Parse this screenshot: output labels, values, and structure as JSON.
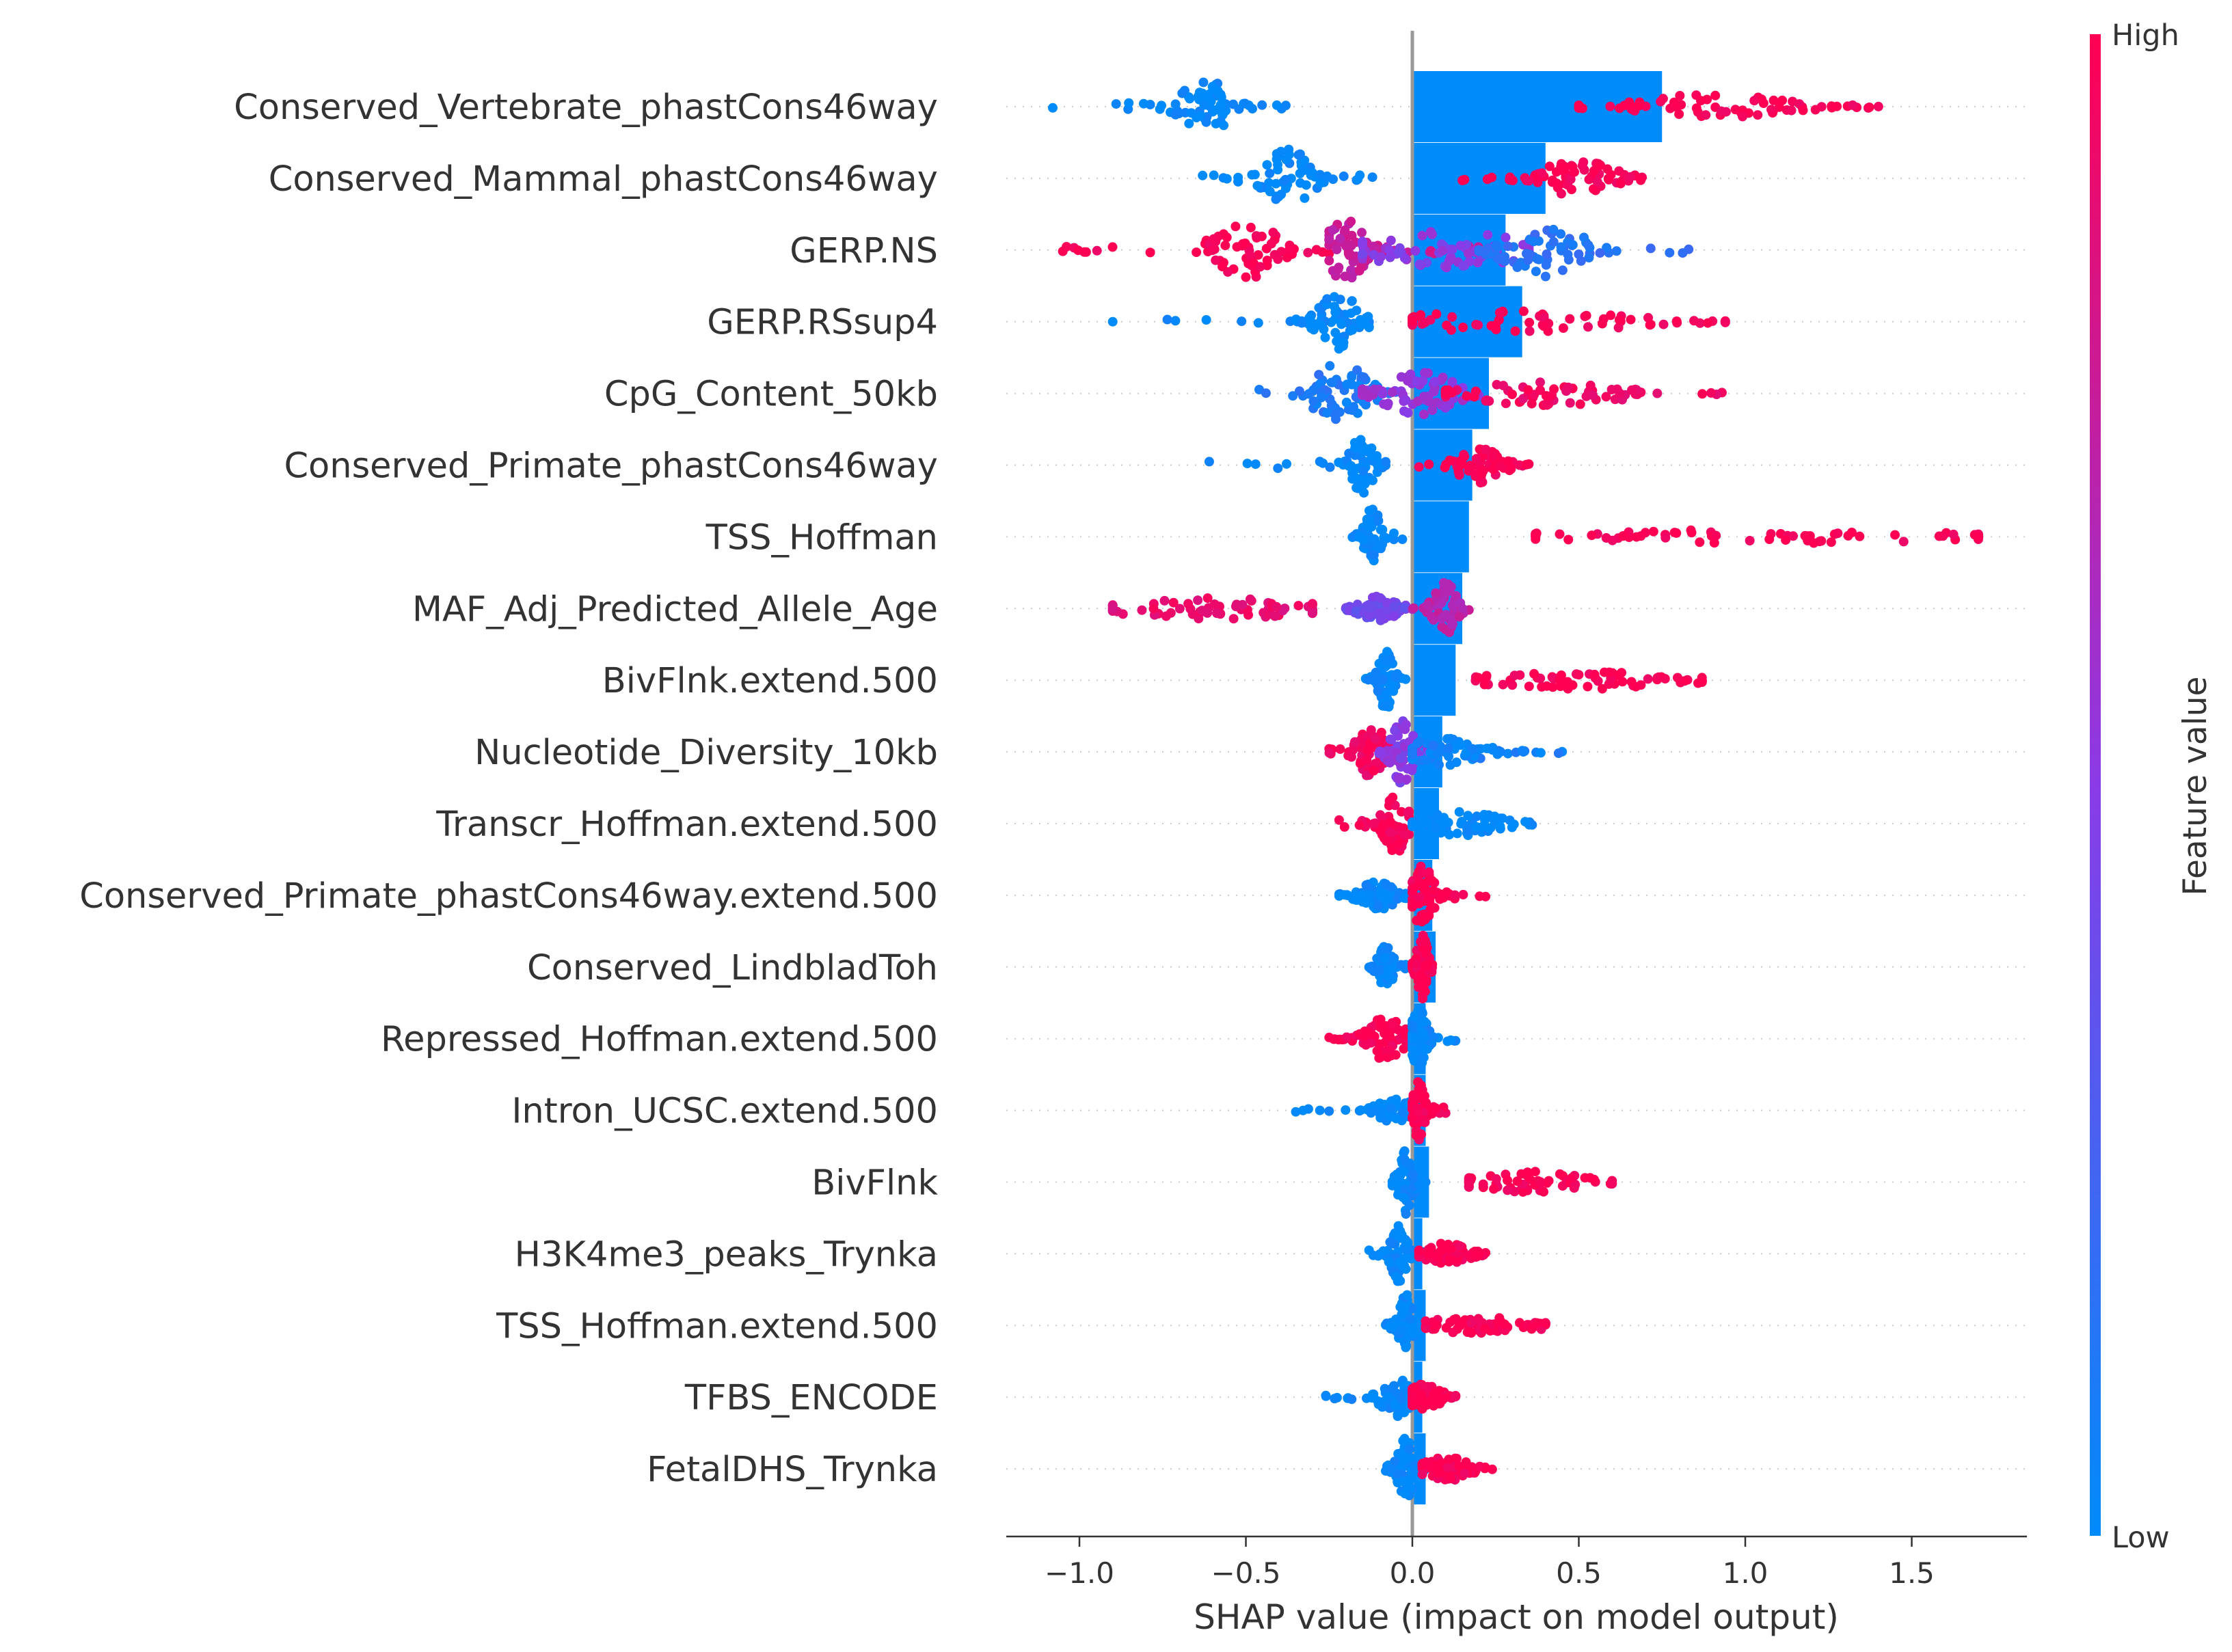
{
  "chart_data": {
    "type": "scatter",
    "subtype": "shap-beeswarm-with-mean-abs-bars",
    "title": "",
    "xlabel": "SHAP value (impact on model output)",
    "ylabel": "",
    "xlim": [
      -1.22,
      1.85
    ],
    "xticks": [
      -1.0,
      -0.5,
      0.0,
      0.5,
      1.0,
      1.5
    ],
    "xtick_labels": [
      "−1.0",
      "−0.5",
      "0.0",
      "0.5",
      "1.0",
      "1.5"
    ],
    "grid": "dotted horizontal row guides",
    "colorbar": {
      "label": "Feature value",
      "high_label": "High",
      "low_label": "Low",
      "low_color": "#008bfb",
      "high_color": "#ff0052"
    },
    "bar_color": "#008bfb",
    "zero_line_color": "#999999",
    "features": [
      {
        "name": "Conserved_Vertebrate_phastCons46way",
        "mean_abs_shap": 0.75,
        "clusters": [
          {
            "min": -1.08,
            "max": -0.38,
            "center": -0.62,
            "width": 0.06,
            "height": 0.85,
            "color": 0.0
          },
          {
            "min": 0.5,
            "max": 1.4,
            "center": 0.9,
            "width": 0.2,
            "height": 0.35,
            "color": 1.0
          }
        ]
      },
      {
        "name": "Conserved_Mammal_phastCons46way",
        "mean_abs_shap": 0.4,
        "clusters": [
          {
            "min": -0.63,
            "max": -0.12,
            "center": -0.37,
            "width": 0.06,
            "height": 0.85,
            "color": 0.0
          },
          {
            "min": 0.15,
            "max": 0.69,
            "center": 0.5,
            "width": 0.1,
            "height": 0.5,
            "color": 1.0
          }
        ]
      },
      {
        "name": "GERP.NS",
        "mean_abs_shap": 0.28,
        "clusters": [
          {
            "min": -1.05,
            "max": -0.25,
            "center": -0.5,
            "width": 0.08,
            "height": 0.85,
            "color": 1.0
          },
          {
            "min": -0.25,
            "max": 0.2,
            "center": -0.2,
            "width": 0.05,
            "height": 0.9,
            "color": 0.75
          },
          {
            "min": -0.15,
            "max": 0.35,
            "center": 0.1,
            "width": 0.2,
            "height": 0.55,
            "color": 0.5
          },
          {
            "min": 0.2,
            "max": 0.83,
            "center": 0.4,
            "width": 0.1,
            "height": 0.75,
            "color": 0.15
          }
        ]
      },
      {
        "name": "GERP.RSsup4",
        "mean_abs_shap": 0.33,
        "clusters": [
          {
            "min": -0.9,
            "max": -0.13,
            "center": -0.22,
            "width": 0.05,
            "height": 0.85,
            "color": 0.0
          },
          {
            "min": 0.0,
            "max": 0.94,
            "center": 0.3,
            "width": 0.3,
            "height": 0.3,
            "color": 1.0
          }
        ]
      },
      {
        "name": "CpG_Content_50kb",
        "mean_abs_shap": 0.23,
        "clusters": [
          {
            "min": -0.46,
            "max": -0.05,
            "center": -0.22,
            "width": 0.07,
            "height": 0.9,
            "color": 0.1
          },
          {
            "min": -0.15,
            "max": 0.2,
            "center": 0.02,
            "width": 0.1,
            "height": 0.6,
            "color": 0.55
          },
          {
            "min": 0.1,
            "max": 0.93,
            "center": 0.4,
            "width": 0.2,
            "height": 0.35,
            "color": 0.95
          }
        ]
      },
      {
        "name": "Conserved_Primate_phastCons46way",
        "mean_abs_shap": 0.18,
        "clusters": [
          {
            "min": -0.61,
            "max": -0.08,
            "center": -0.15,
            "width": 0.03,
            "height": 0.85,
            "color": 0.0
          },
          {
            "min": 0.02,
            "max": 0.35,
            "center": 0.2,
            "width": 0.06,
            "height": 0.5,
            "color": 1.0
          }
        ]
      },
      {
        "name": "TSS_Hoffman",
        "mean_abs_shap": 0.17,
        "clusters": [
          {
            "min": -0.18,
            "max": -0.03,
            "center": -0.12,
            "width": 0.02,
            "height": 0.85,
            "color": 0.0
          },
          {
            "min": 0.37,
            "max": 1.7,
            "center": 1.0,
            "width": 0.6,
            "height": 0.2,
            "color": 1.0
          }
        ]
      },
      {
        "name": "MAF_Adj_Predicted_Allele_Age",
        "mean_abs_shap": 0.15,
        "clusters": [
          {
            "min": -0.9,
            "max": -0.3,
            "center": -0.6,
            "width": 0.25,
            "height": 0.3,
            "color": 0.9
          },
          {
            "min": -0.2,
            "max": -0.02,
            "center": -0.1,
            "width": 0.05,
            "height": 0.35,
            "color": 0.4
          },
          {
            "min": 0.0,
            "max": 0.17,
            "center": 0.1,
            "width": 0.03,
            "height": 0.75,
            "color": 0.7
          }
        ]
      },
      {
        "name": "BivFlnk.extend.500",
        "mean_abs_shap": 0.13,
        "clusters": [
          {
            "min": -0.14,
            "max": -0.02,
            "center": -0.08,
            "width": 0.02,
            "height": 0.85,
            "color": 0.0
          },
          {
            "min": 0.19,
            "max": 0.87,
            "center": 0.5,
            "width": 0.25,
            "height": 0.25,
            "color": 1.0
          }
        ]
      },
      {
        "name": "Nucleotide_Diversity_10kb",
        "mean_abs_shap": 0.09,
        "clusters": [
          {
            "min": -0.25,
            "max": -0.05,
            "center": -0.12,
            "width": 0.04,
            "height": 0.75,
            "color": 0.95
          },
          {
            "min": -0.1,
            "max": 0.12,
            "center": -0.03,
            "width": 0.03,
            "height": 0.9,
            "color": 0.5
          },
          {
            "min": 0.0,
            "max": 0.45,
            "center": 0.1,
            "width": 0.1,
            "height": 0.4,
            "color": 0.05
          }
        ]
      },
      {
        "name": "Transcr_Hoffman.extend.500",
        "mean_abs_shap": 0.08,
        "clusters": [
          {
            "min": -0.22,
            "max": -0.01,
            "center": -0.05,
            "width": 0.03,
            "height": 0.85,
            "color": 1.0
          },
          {
            "min": 0.0,
            "max": 0.36,
            "center": 0.15,
            "width": 0.1,
            "height": 0.35,
            "color": 0.0
          }
        ]
      },
      {
        "name": "Conserved_Primate_phastCons46way.extend.500",
        "mean_abs_shap": 0.06,
        "clusters": [
          {
            "min": -0.22,
            "max": -0.01,
            "center": -0.1,
            "width": 0.05,
            "height": 0.4,
            "color": 0.0
          },
          {
            "min": 0.0,
            "max": 0.22,
            "center": 0.03,
            "width": 0.03,
            "height": 0.85,
            "color": 1.0
          }
        ]
      },
      {
        "name": "Conserved_LindbladToh",
        "mean_abs_shap": 0.07,
        "clusters": [
          {
            "min": -0.13,
            "max": -0.02,
            "center": -0.08,
            "width": 0.02,
            "height": 0.6,
            "color": 0.0
          },
          {
            "min": 0.0,
            "max": 0.06,
            "center": 0.03,
            "width": 0.015,
            "height": 0.9,
            "color": 1.0
          }
        ]
      },
      {
        "name": "Repressed_Hoffman.extend.500",
        "mean_abs_shap": 0.04,
        "clusters": [
          {
            "min": -0.25,
            "max": -0.02,
            "center": -0.08,
            "width": 0.05,
            "height": 0.6,
            "color": 1.0
          },
          {
            "min": 0.0,
            "max": 0.13,
            "center": 0.02,
            "width": 0.02,
            "height": 0.85,
            "color": 0.0
          }
        ]
      },
      {
        "name": "Intron_UCSC.extend.500",
        "mean_abs_shap": 0.04,
        "clusters": [
          {
            "min": -0.35,
            "max": -0.01,
            "center": -0.05,
            "width": 0.05,
            "height": 0.35,
            "color": 0.0
          },
          {
            "min": 0.0,
            "max": 0.1,
            "center": 0.02,
            "width": 0.015,
            "height": 0.85,
            "color": 1.0
          }
        ]
      },
      {
        "name": "BivFlnk",
        "mean_abs_shap": 0.05,
        "clusters": [
          {
            "min": -0.06,
            "max": 0.04,
            "center": -0.02,
            "width": 0.02,
            "height": 0.9,
            "color": 0.0
          },
          {
            "min": 0.17,
            "max": 0.6,
            "center": 0.35,
            "width": 0.15,
            "height": 0.3,
            "color": 1.0
          }
        ]
      },
      {
        "name": "H3K4me3_peaks_Trynka",
        "mean_abs_shap": 0.03,
        "clusters": [
          {
            "min": -0.13,
            "max": 0.03,
            "center": -0.04,
            "width": 0.02,
            "height": 0.85,
            "color": 0.0
          },
          {
            "min": 0.02,
            "max": 0.22,
            "center": 0.1,
            "width": 0.06,
            "height": 0.3,
            "color": 1.0
          }
        ]
      },
      {
        "name": "TSS_Hoffman.extend.500",
        "mean_abs_shap": 0.04,
        "clusters": [
          {
            "min": -0.08,
            "max": 0.04,
            "center": -0.02,
            "width": 0.02,
            "height": 0.9,
            "color": 0.0
          },
          {
            "min": 0.04,
            "max": 0.4,
            "center": 0.2,
            "width": 0.15,
            "height": 0.25,
            "color": 1.0
          }
        ]
      },
      {
        "name": "TFBS_ENCODE",
        "mean_abs_shap": 0.03,
        "clusters": [
          {
            "min": -0.26,
            "max": -0.01,
            "center": -0.05,
            "width": 0.04,
            "height": 0.55,
            "color": 0.0
          },
          {
            "min": 0.0,
            "max": 0.13,
            "center": 0.04,
            "width": 0.04,
            "height": 0.4,
            "color": 1.0
          }
        ]
      },
      {
        "name": "FetalDHS_Trynka",
        "mean_abs_shap": 0.04,
        "clusters": [
          {
            "min": -0.08,
            "max": 0.04,
            "center": -0.02,
            "width": 0.02,
            "height": 0.9,
            "color": 0.0
          },
          {
            "min": 0.03,
            "max": 0.24,
            "center": 0.1,
            "width": 0.06,
            "height": 0.35,
            "color": 1.0
          }
        ]
      }
    ]
  }
}
